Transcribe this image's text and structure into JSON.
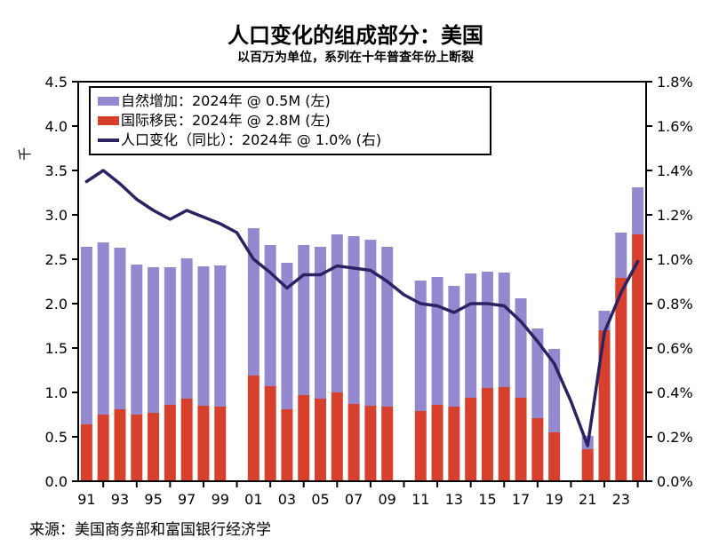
{
  "header": {
    "title": "人口变化的组成部分：美国",
    "subtitle": "以百万为单位，系列在十年普查年份上断裂"
  },
  "source_note": "来源：美国商务部和富国银行经济学",
  "y_axis_left": {
    "unit_label": "千",
    "ticks": [
      {
        "label": "4.5",
        "value": 4.5
      },
      {
        "label": "4.0",
        "value": 4.0
      },
      {
        "label": "3.5",
        "value": 3.5
      },
      {
        "label": "3.0",
        "value": 3.0
      },
      {
        "label": "2.5",
        "value": 2.5
      },
      {
        "label": "2.0",
        "value": 2.0
      },
      {
        "label": "1.5",
        "value": 1.5
      },
      {
        "label": "1.0",
        "value": 1.0
      },
      {
        "label": "0.5",
        "value": 0.5
      },
      {
        "label": "0.0",
        "value": 0.0
      }
    ]
  },
  "y_axis_right": {
    "ticks": [
      {
        "label": "1.8%",
        "value": 1.8
      },
      {
        "label": "1.6%",
        "value": 1.6
      },
      {
        "label": "1.4%",
        "value": 1.4
      },
      {
        "label": "1.2%",
        "value": 1.2
      },
      {
        "label": "1.0%",
        "value": 1.0
      },
      {
        "label": "0.8%",
        "value": 0.8
      },
      {
        "label": "0.6%",
        "value": 0.6
      },
      {
        "label": "0.4%",
        "value": 0.4
      },
      {
        "label": "0.2%",
        "value": 0.2
      },
      {
        "label": "0.0%",
        "value": 0.0
      }
    ]
  },
  "x_axis": {
    "labels": [
      {
        "label": "91",
        "year": 1991
      },
      {
        "label": "93",
        "year": 1993
      },
      {
        "label": "95",
        "year": 1995
      },
      {
        "label": "97",
        "year": 1997
      },
      {
        "label": "99",
        "year": 1999
      },
      {
        "label": "01",
        "year": 2001
      },
      {
        "label": "03",
        "year": 2003
      },
      {
        "label": "05",
        "year": 2005
      },
      {
        "label": "07",
        "year": 2007
      },
      {
        "label": "09",
        "year": 2009
      },
      {
        "label": "11",
        "year": 2011
      },
      {
        "label": "13",
        "year": 2013
      },
      {
        "label": "15",
        "year": 2015
      },
      {
        "label": "17",
        "year": 2017
      },
      {
        "label": "19",
        "year": 2019
      },
      {
        "label": "21",
        "year": 2021
      },
      {
        "label": "23",
        "year": 2023
      }
    ]
  },
  "legend": {
    "items": [
      {
        "label": "自然增加：2024年 @ 0.5M (左)",
        "swatch": "bar",
        "color": "#9489CE"
      },
      {
        "label": "国际移民：2024年 @ 2.8M (左)",
        "swatch": "bar",
        "color": "#D6402C"
      },
      {
        "label": "人口变化（同比）：2024年 @ 1.0% (右)",
        "swatch": "line",
        "color": "#2C2263"
      }
    ]
  },
  "chart_data": {
    "type": "combo_stacked_bar_line",
    "title": "人口变化的组成部分：美国",
    "subtitle": "以百万为单位，系列在十年普查年份上断裂",
    "x": [
      1991,
      1992,
      1993,
      1994,
      1995,
      1996,
      1997,
      1998,
      1999,
      2000,
      2001,
      2002,
      2003,
      2004,
      2005,
      2006,
      2007,
      2008,
      2009,
      2010,
      2011,
      2012,
      2013,
      2014,
      2015,
      2016,
      2017,
      2018,
      2019,
      2020,
      2021,
      2022,
      2023,
      2024
    ],
    "bar_gap_years": [
      2000,
      2010,
      2020
    ],
    "left_ylim": [
      0,
      4.5
    ],
    "right_ylim": [
      0,
      1.8
    ],
    "grid": false,
    "legend_position": "top-left",
    "series": [
      {
        "name": "自然增加",
        "type": "bar",
        "axis": "left",
        "stack_position": "top",
        "color": "#9489CE",
        "values": [
          2.0,
          1.94,
          1.82,
          1.69,
          1.64,
          1.55,
          1.58,
          1.57,
          1.59,
          null,
          1.66,
          1.59,
          1.65,
          1.69,
          1.71,
          1.78,
          1.89,
          1.87,
          1.8,
          null,
          1.47,
          1.44,
          1.36,
          1.4,
          1.31,
          1.29,
          1.12,
          1.01,
          0.94,
          null,
          0.15,
          0.22,
          0.51,
          0.53
        ]
      },
      {
        "name": "国际移民",
        "type": "bar",
        "axis": "left",
        "stack_position": "bottom",
        "color": "#D6402C",
        "values": [
          0.64,
          0.75,
          0.81,
          0.75,
          0.77,
          0.86,
          0.93,
          0.85,
          0.84,
          null,
          1.19,
          1.07,
          0.81,
          0.97,
          0.93,
          1.0,
          0.87,
          0.85,
          0.84,
          null,
          0.79,
          0.86,
          0.84,
          0.94,
          1.05,
          1.06,
          0.94,
          0.71,
          0.55,
          null,
          0.36,
          1.7,
          2.29,
          2.78
        ]
      },
      {
        "name": "人口变化（同比）",
        "type": "line",
        "axis": "right",
        "color": "#2C2263",
        "values": [
          1.35,
          1.4,
          1.34,
          1.27,
          1.22,
          1.18,
          1.22,
          1.19,
          1.16,
          1.12,
          1.0,
          0.94,
          0.87,
          0.93,
          0.93,
          0.97,
          0.96,
          0.95,
          0.9,
          0.84,
          0.8,
          0.79,
          0.76,
          0.8,
          0.8,
          0.79,
          0.72,
          0.63,
          0.53,
          0.36,
          0.16,
          0.67,
          0.85,
          0.99
        ]
      }
    ]
  }
}
